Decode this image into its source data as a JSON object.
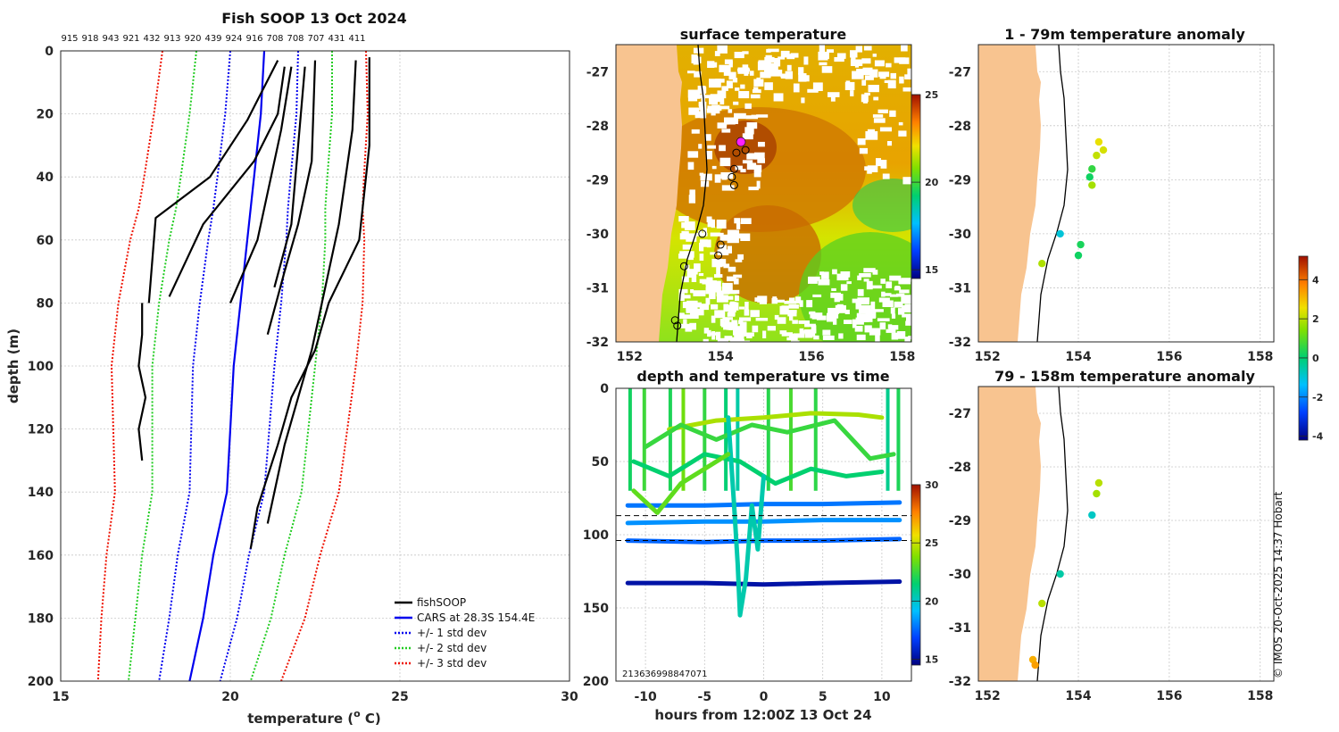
{
  "figure_title": "Fish SOOP 13 Oct 2024",
  "credit": "© IMOS 20-Oct-2025 14:37 Hobart",
  "chart_data": [
    {
      "id": "profile",
      "type": "line",
      "title": "Fish SOOP 13 Oct 2024",
      "xlabel": "temperature (",
      "xlabel_sup": "o",
      "xlabel_tail": " C)",
      "ylabel": "depth (m)",
      "xlim": [
        15,
        30
      ],
      "ylim": [
        0,
        200
      ],
      "xticks": [
        15,
        20,
        25,
        30
      ],
      "yticks": [
        0,
        20,
        40,
        60,
        80,
        100,
        120,
        140,
        160,
        180,
        200
      ],
      "top_ids": [
        "915",
        "918",
        "943",
        "921",
        "432",
        "913",
        "920",
        "439",
        "924",
        "916",
        "708",
        "708",
        "707",
        "431",
        "411"
      ],
      "depths": [
        0,
        20,
        40,
        50,
        60,
        80,
        100,
        120,
        140,
        160,
        180,
        200
      ],
      "cars_mean": [
        21.0,
        20.9,
        20.7,
        20.6,
        20.5,
        20.3,
        20.1,
        20.0,
        19.9,
        19.5,
        19.2,
        18.8
      ],
      "std1": [
        1.0,
        1.05,
        1.08,
        1.1,
        1.15,
        1.2,
        1.2,
        1.15,
        1.1,
        1.05,
        1.0,
        0.9
      ],
      "series": [
        {
          "name": "fishSOOP",
          "color": "#000000",
          "style": "solid"
        },
        {
          "name": "CARS at 28.3S 154.4E",
          "color": "#0000ee",
          "style": "solid"
        },
        {
          "name": "+/- 1 std dev",
          "color": "#0000ee",
          "style": "dotted"
        },
        {
          "name": "+/- 2 std dev",
          "color": "#22cc22",
          "style": "dotted"
        },
        {
          "name": "+/- 3 std dev",
          "color": "#ee1100",
          "style": "dotted"
        }
      ],
      "profiles": [
        {
          "t": [
            17.4,
            17.4,
            17.3,
            17.5,
            17.3,
            17.4
          ],
          "d": [
            80,
            90,
            100,
            110,
            120,
            130
          ]
        },
        {
          "t": [
            24.1,
            24.1,
            23.8,
            22.9,
            22.5,
            21.8,
            21.4,
            20.8,
            20.6
          ],
          "d": [
            2,
            30,
            60,
            80,
            95,
            110,
            125,
            145,
            158
          ]
        },
        {
          "t": [
            23.7,
            23.6,
            23.2,
            22.8,
            22.4,
            21.6,
            21.1
          ],
          "d": [
            3,
            25,
            55,
            75,
            95,
            125,
            150
          ]
        },
        {
          "t": [
            22.5,
            22.4,
            22.0,
            21.6,
            21.1
          ],
          "d": [
            3,
            35,
            55,
            70,
            90
          ]
        },
        {
          "t": [
            22.2,
            22.0,
            21.8,
            21.3
          ],
          "d": [
            5,
            30,
            55,
            75
          ]
        },
        {
          "t": [
            21.8,
            21.5,
            20.8,
            20.0
          ],
          "d": [
            5,
            25,
            60,
            80
          ]
        },
        {
          "t": [
            21.6,
            21.4,
            20.7,
            19.2,
            18.2
          ],
          "d": [
            5,
            20,
            35,
            55,
            78
          ]
        },
        {
          "t": [
            21.4,
            20.5,
            19.4,
            17.8,
            17.6
          ],
          "d": [
            3,
            22,
            40,
            53,
            80
          ]
        }
      ]
    },
    {
      "id": "map_sst",
      "type": "heatmap",
      "title": "surface temperature",
      "xlim": [
        151.7,
        158.2
      ],
      "ylim": [
        -32,
        -26.5
      ],
      "xticks": [
        152,
        154,
        156,
        158
      ],
      "yticks": [
        -27,
        -28,
        -29,
        -30,
        -31,
        -32
      ],
      "colorbar": {
        "min": 14.5,
        "max": 25,
        "ticks": [
          15,
          20,
          25
        ]
      },
      "stations": [
        {
          "lon": 154.45,
          "lat": -28.3,
          "current": true
        },
        {
          "lon": 154.35,
          "lat": -28.5
        },
        {
          "lon": 154.55,
          "lat": -28.45
        },
        {
          "lon": 154.3,
          "lat": -28.8
        },
        {
          "lon": 154.25,
          "lat": -28.95
        },
        {
          "lon": 154.3,
          "lat": -29.1
        },
        {
          "lon": 153.6,
          "lat": -30.0
        },
        {
          "lon": 154.0,
          "lat": -30.2
        },
        {
          "lon": 153.95,
          "lat": -30.4
        },
        {
          "lon": 153.2,
          "lat": -30.6
        },
        {
          "lon": 153.0,
          "lat": -31.6
        },
        {
          "lon": 153.05,
          "lat": -31.7
        }
      ]
    },
    {
      "id": "map_anom_1",
      "type": "scatter",
      "title": "1 - 79m temperature anomaly",
      "xlim": [
        151.8,
        158.3
      ],
      "ylim": [
        -32,
        -26.5
      ],
      "xticks": [
        152,
        154,
        156,
        158
      ],
      "yticks": [
        -27,
        -28,
        -29,
        -30,
        -31,
        -32
      ],
      "points": [
        {
          "lon": 154.45,
          "lat": -28.3,
          "value": 2.5
        },
        {
          "lon": 154.55,
          "lat": -28.45,
          "value": 2.3
        },
        {
          "lon": 154.4,
          "lat": -28.55,
          "value": 2.1
        },
        {
          "lon": 154.3,
          "lat": -28.8,
          "value": 0.6
        },
        {
          "lon": 154.25,
          "lat": -28.95,
          "value": 0.2
        },
        {
          "lon": 154.3,
          "lat": -29.1,
          "value": 1.8
        },
        {
          "lon": 153.6,
          "lat": -30.0,
          "value": -1.0
        },
        {
          "lon": 154.05,
          "lat": -30.2,
          "value": 0.3
        },
        {
          "lon": 154.0,
          "lat": -30.4,
          "value": 0.2
        },
        {
          "lon": 153.2,
          "lat": -30.55,
          "value": 1.9
        }
      ]
    },
    {
      "id": "map_anom_2",
      "type": "scatter",
      "title": "79 - 158m temperature anomaly",
      "xlim": [
        151.8,
        158.3
      ],
      "ylim": [
        -32,
        -26.5
      ],
      "xticks": [
        152,
        154,
        156,
        158
      ],
      "yticks": [
        -27,
        -28,
        -29,
        -30,
        -31,
        -32
      ],
      "colorbar": {
        "min": -4.2,
        "max": 5.2,
        "ticks": [
          4,
          2,
          0,
          -2,
          -4
        ]
      },
      "points": [
        {
          "lon": 154.45,
          "lat": -28.3,
          "value": 2.0
        },
        {
          "lon": 154.4,
          "lat": -28.5,
          "value": 1.8
        },
        {
          "lon": 154.3,
          "lat": -28.9,
          "value": -0.8
        },
        {
          "lon": 153.6,
          "lat": -30.0,
          "value": -0.5
        },
        {
          "lon": 153.2,
          "lat": -30.55,
          "value": 2.0
        },
        {
          "lon": 153.0,
          "lat": -31.6,
          "value": 3.2
        },
        {
          "lon": 153.05,
          "lat": -31.7,
          "value": 3.4
        }
      ]
    },
    {
      "id": "depth_time",
      "type": "scatter",
      "title": "depth and temperature vs time",
      "xlabel": "hours from 12:00Z 13 Oct 24",
      "xlim": [
        -12.5,
        12.5
      ],
      "ylim": [
        0,
        200
      ],
      "xticks": [
        -10,
        -5,
        0,
        5,
        10
      ],
      "yticks": [
        0,
        50,
        100,
        150,
        200
      ],
      "ref_depths": [
        87,
        104
      ],
      "label_text": "213636998847071",
      "colorbar": {
        "min": 14.5,
        "max": 30,
        "ticks": [
          30,
          25,
          20,
          15
        ]
      },
      "tracks": [
        {
          "temp": 17.8,
          "pts": [
            [
              -11.5,
              80
            ],
            [
              -5,
              80
            ],
            [
              0,
              79
            ],
            [
              5,
              79
            ],
            [
              11.5,
              78
            ]
          ]
        },
        {
          "temp": 18.3,
          "pts": [
            [
              -11.5,
              92
            ],
            [
              -5,
              91
            ],
            [
              0,
              91
            ],
            [
              5,
              90
            ],
            [
              11.5,
              90
            ]
          ]
        },
        {
          "temp": 17.5,
          "pts": [
            [
              -11.5,
              104
            ],
            [
              -5,
              105
            ],
            [
              0,
              104
            ],
            [
              5,
              104
            ],
            [
              11.5,
              103
            ]
          ]
        },
        {
          "temp": 15.2,
          "pts": [
            [
              -11.5,
              133
            ],
            [
              -5,
              133
            ],
            [
              0,
              134
            ],
            [
              5,
              133
            ],
            [
              11.5,
              132
            ]
          ]
        },
        {
          "temp": 24.5,
          "pts": [
            [
              -8,
              28
            ],
            [
              -4,
              22
            ],
            [
              0,
              20
            ],
            [
              4,
              17
            ],
            [
              8,
              18
            ],
            [
              10,
              20
            ]
          ]
        },
        {
          "temp": 21.5,
          "pts": [
            [
              -11,
              50
            ],
            [
              -8,
              60
            ],
            [
              -5,
              45
            ],
            [
              -2,
              50
            ],
            [
              1,
              65
            ],
            [
              4,
              55
            ],
            [
              7,
              60
            ],
            [
              10,
              57
            ]
          ]
        },
        {
          "temp": 22.5,
          "pts": [
            [
              -10,
              40
            ],
            [
              -7,
              25
            ],
            [
              -4,
              35
            ],
            [
              -1,
              25
            ],
            [
              2,
              30
            ],
            [
              6,
              22
            ],
            [
              9,
              48
            ],
            [
              11,
              45
            ]
          ]
        },
        {
          "temp": 20.5,
          "pts": [
            [
              -3,
              20
            ],
            [
              -2.5,
              80
            ],
            [
              -2.2,
              120
            ],
            [
              -2,
              155
            ],
            [
              -1.5,
              130
            ],
            [
              -1,
              80
            ],
            [
              -0.5,
              110
            ],
            [
              0,
              60
            ]
          ]
        },
        {
          "temp": 23.2,
          "pts": [
            [
              -11,
              70
            ],
            [
              -9,
              85
            ],
            [
              -7,
              65
            ],
            [
              -5,
              55
            ],
            [
              -3,
              45
            ]
          ]
        }
      ],
      "casts": [
        {
          "h": -11.3,
          "temp": 21.8
        },
        {
          "h": -10.1,
          "temp": 22.6
        },
        {
          "h": -7.9,
          "temp": 22.0
        },
        {
          "h": -6.8,
          "temp": 23.5
        },
        {
          "h": -5.0,
          "temp": 22.4
        },
        {
          "h": -3.2,
          "temp": 21.4
        },
        {
          "h": -2.2,
          "temp": 20.6
        },
        {
          "h": 0.4,
          "temp": 22.2
        },
        {
          "h": 2.3,
          "temp": 22.8
        },
        {
          "h": 4.4,
          "temp": 22.3
        },
        {
          "h": 10.5,
          "temp": 21.0
        },
        {
          "h": 11.4,
          "temp": 22.0
        }
      ]
    }
  ]
}
